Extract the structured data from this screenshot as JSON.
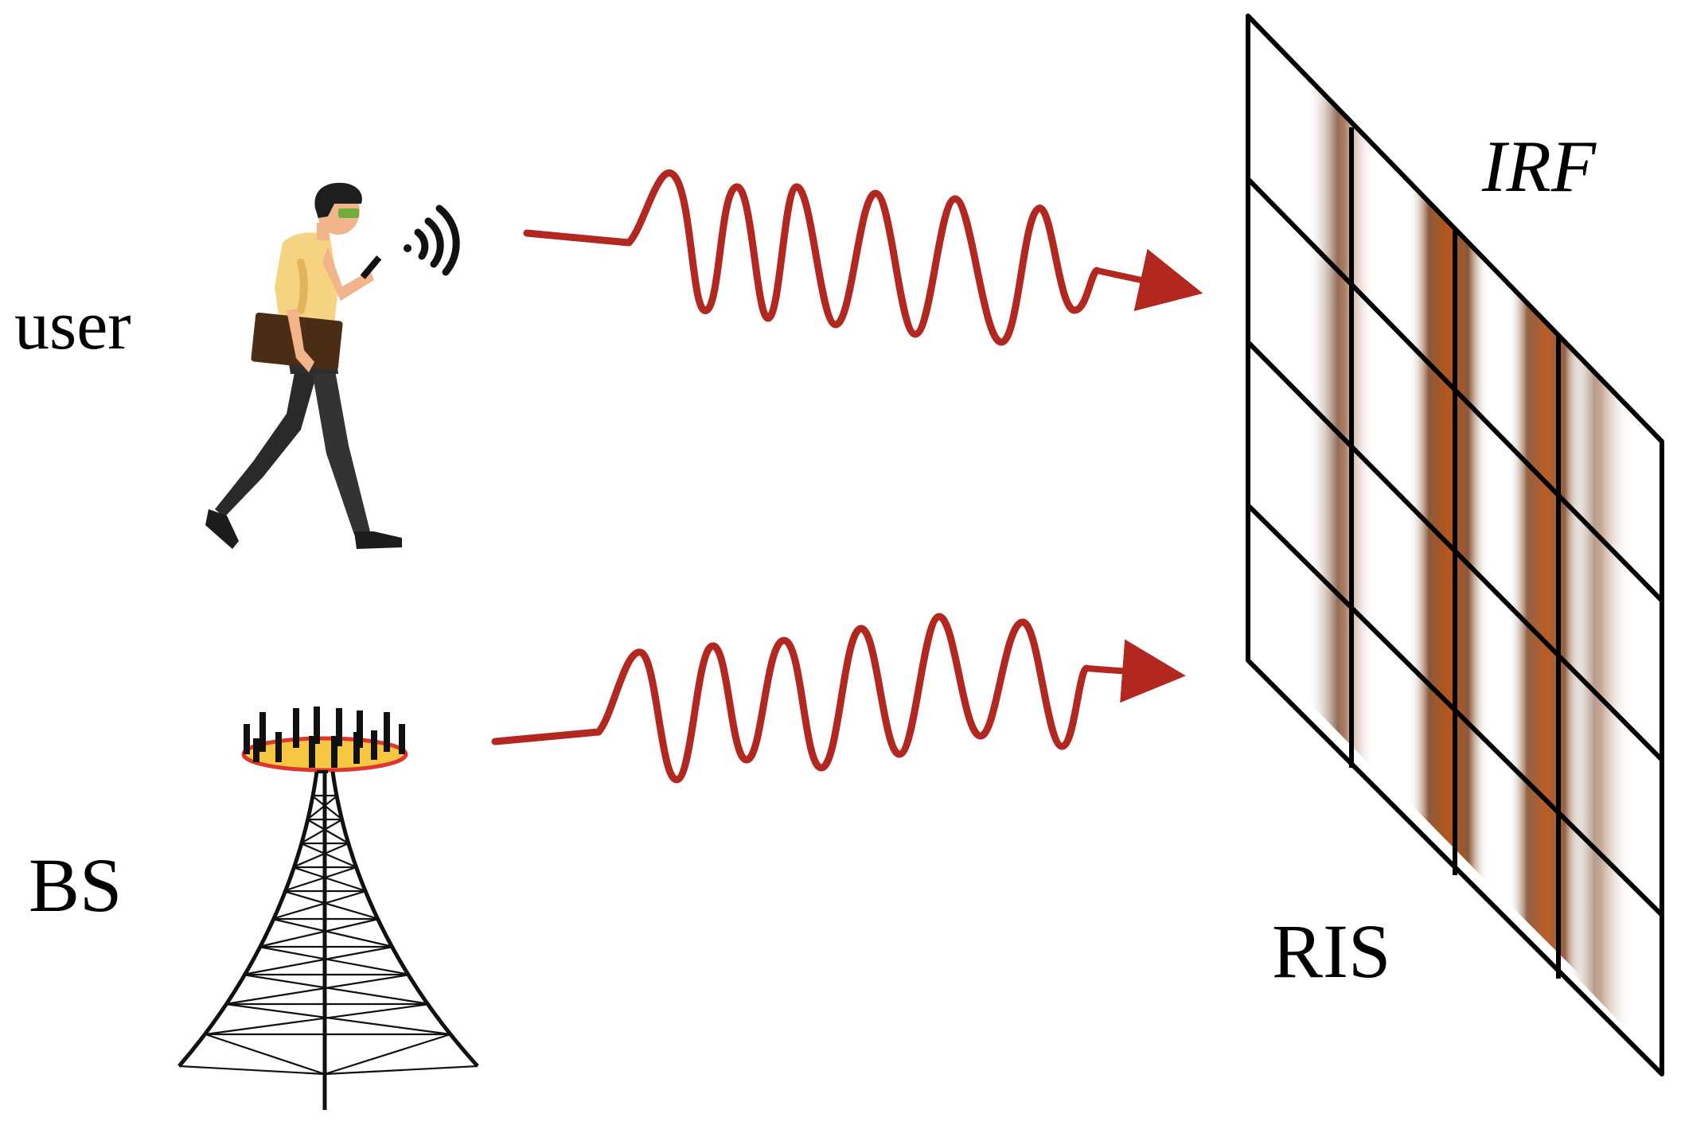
{
  "labels": {
    "user": "user",
    "bs": "BS",
    "ris": "RIS",
    "irf": "IRF"
  },
  "colors": {
    "wave": "#b22720",
    "grid_line": "#000000",
    "irf_band": "#b8561a",
    "irf_band_dark": "#6b3318",
    "skin": "#f2b48a",
    "shirt": "#f6d383",
    "trousers": "#2e2e2e",
    "bag": "#4a2d14",
    "hair": "#1e1e1e",
    "glasses": "#6fae3c",
    "antenna_disk": "#f7c742",
    "antenna_rim": "#e0342c"
  },
  "icons": {
    "user": "walking-person-with-phone-icon",
    "signal": "wifi-signal-icon",
    "bs": "cell-tower-icon",
    "ris": "reconfigurable-surface-panel"
  }
}
